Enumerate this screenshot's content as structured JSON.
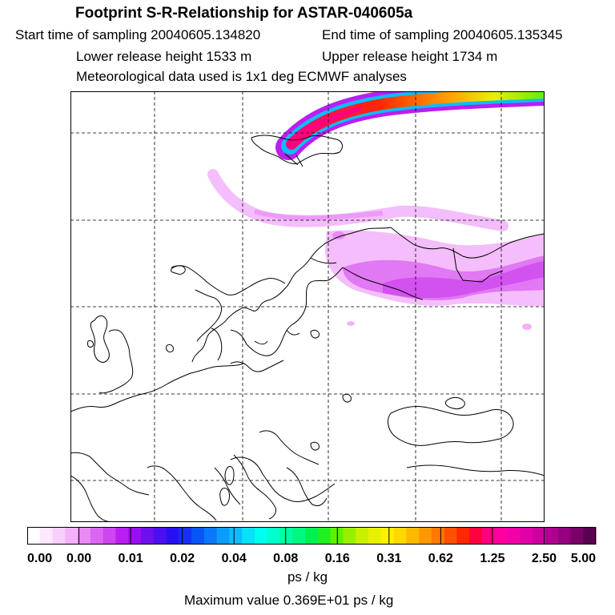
{
  "header": {
    "title": "Footprint S-R-Relationship for ASTAR-040605a",
    "start_time": "Start time of sampling 20040605.134820",
    "end_time": "End time of sampling 20040605.135345",
    "lower_height": "Lower release height 1533 m",
    "upper_height": "Upper release height 1734 m",
    "met_data": "Meteorological data used is 1x1 deg ECMWF analyses"
  },
  "legend": {
    "tick_labels": [
      "0.00",
      "0.00",
      "0.01",
      "0.02",
      "0.04",
      "0.08",
      "0.16",
      "0.31",
      "0.62",
      "1.25",
      "2.50",
      "5.00"
    ],
    "colors": [
      "#ffffff",
      "#fde8fe",
      "#f9cffc",
      "#f2b1fa",
      "#e98af6",
      "#dc66f2",
      "#cc45ef",
      "#b91ff0",
      "#9a0ff0",
      "#6e10ee",
      "#4b10f0",
      "#2a10f0",
      "#1430f8",
      "#0a55f8",
      "#0a78fa",
      "#0a9cfa",
      "#0abefa",
      "#0ae0f8",
      "#00ffee",
      "#00ffcc",
      "#00fca4",
      "#00f880",
      "#00f050",
      "#20f020",
      "#60f000",
      "#98f000",
      "#c8f000",
      "#e8f000",
      "#fff000",
      "#ffd800",
      "#ffb800",
      "#ff9800",
      "#ff7800",
      "#ff5000",
      "#ff2800",
      "#ff0040",
      "#ff0080",
      "#ff00a0",
      "#f000a8",
      "#e000a8",
      "#cc00a0",
      "#b00090",
      "#940080",
      "#780068",
      "#5a0050"
    ],
    "unit": "ps / kg",
    "max_value": "Maximum value  0.369E+01 ps / kg"
  }
}
